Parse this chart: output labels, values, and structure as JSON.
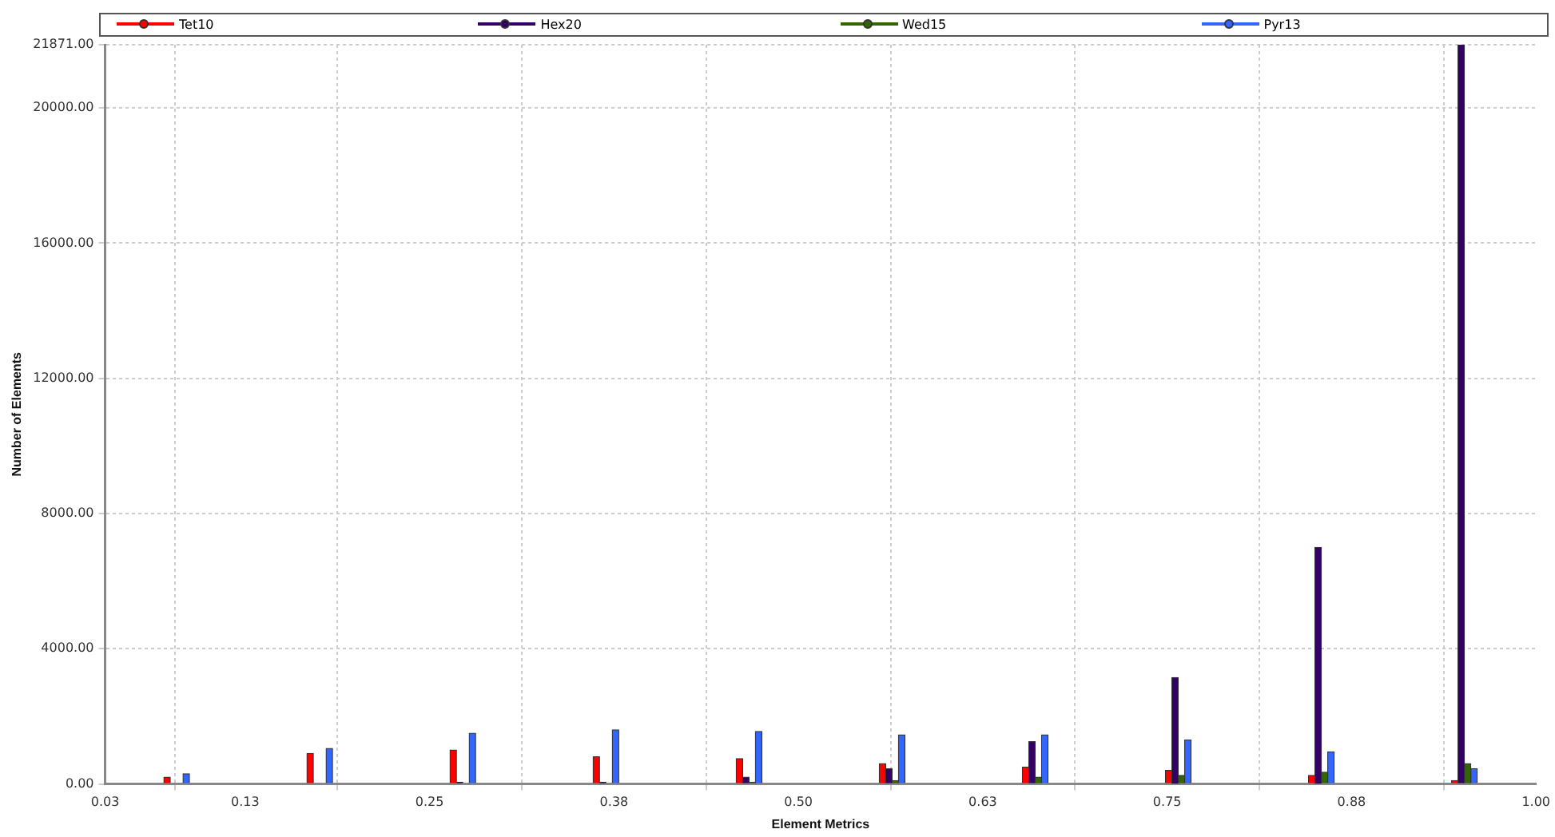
{
  "chart_data": {
    "type": "histogram",
    "xlabel": "Element Metrics",
    "ylabel": "Number of Elements",
    "bins": [
      0.03,
      0.127,
      0.224,
      0.321,
      0.418,
      0.515,
      0.612,
      0.709,
      0.806,
      0.903,
      1.0
    ],
    "series": [
      {
        "name": "Tet10",
        "color": "#ff0000",
        "values": [
          200,
          900,
          1000,
          800,
          750,
          600,
          500,
          400,
          250,
          100
        ]
      },
      {
        "name": "Hex20",
        "color": "#330066",
        "values": [
          0,
          0,
          50,
          50,
          200,
          450,
          1250,
          3150,
          7000,
          21871
        ]
      },
      {
        "name": "Wed15",
        "color": "#336600",
        "values": [
          0,
          0,
          0,
          0,
          50,
          100,
          200,
          250,
          350,
          600
        ]
      },
      {
        "name": "Pyr13",
        "color": "#3366ff",
        "values": [
          300,
          1050,
          1500,
          1600,
          1550,
          1450,
          1450,
          1300,
          950,
          450
        ]
      }
    ],
    "xlim": [
      0.03,
      1.0
    ],
    "xticks": [
      0.03,
      {
        "value": 0.125,
        "label": "0.13"
      },
      0.25,
      {
        "value": 0.375,
        "label": "0.38"
      },
      {
        "value": 0.5,
        "label": "0.50"
      },
      {
        "value": 0.625,
        "label": "0.63"
      },
      0.75,
      {
        "value": 0.875,
        "label": "0.88"
      },
      {
        "value": 1.0,
        "label": "1.00"
      }
    ],
    "ylim": [
      0,
      21871
    ],
    "yticks": [
      {
        "value": 0,
        "label": "0.00"
      },
      {
        "value": 4000,
        "label": "4000.00"
      },
      {
        "value": 8000,
        "label": "8000.00"
      },
      {
        "value": 12000,
        "label": "12000.00"
      },
      {
        "value": 16000,
        "label": "16000.00"
      },
      {
        "value": 20000,
        "label": "20000.00"
      },
      {
        "value": 21871,
        "label": "21871.00"
      }
    ],
    "grid": true,
    "legend": "top"
  }
}
